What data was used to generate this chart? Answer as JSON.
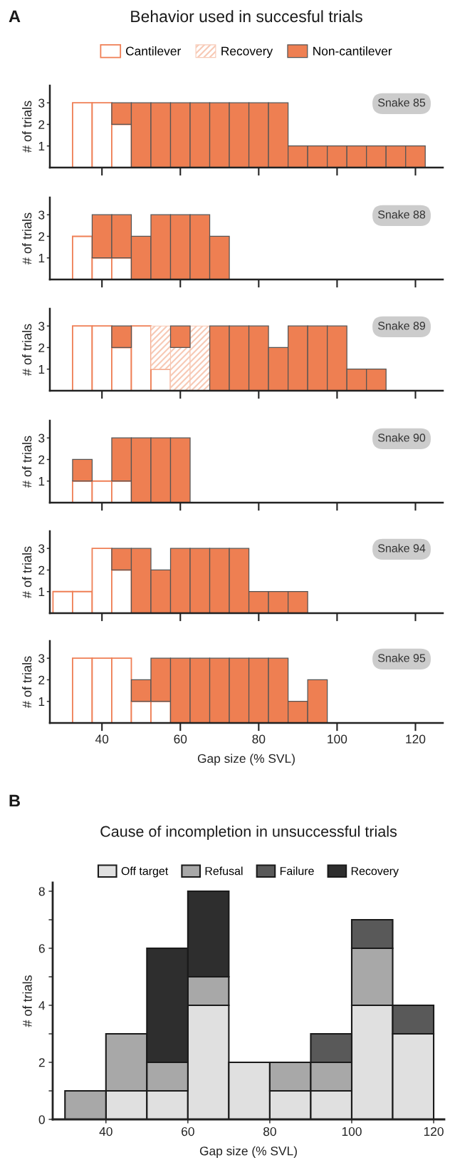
{
  "chart_data": [
    {
      "type": "bar",
      "title": "Behavior used in succesful trials",
      "subtitle": "Snake 85",
      "annotations": [
        "A"
      ],
      "ylabel": "# of trials",
      "stacked": true,
      "legend": "top",
      "tick_labels": "y",
      "x": [
        30,
        35,
        40,
        45,
        50,
        55,
        60,
        65,
        70,
        75,
        80,
        85,
        90,
        95,
        100,
        105,
        110,
        115,
        120
      ],
      "xlim": [
        26.7,
        127
      ],
      "xticks": [
        40,
        60,
        80,
        100,
        120
      ],
      "ylim": [
        0,
        3.8
      ],
      "yticks": [
        1,
        2,
        3
      ],
      "series": [
        {
          "name": "Cantilever",
          "color": "#ef7f55",
          "values": [
            0,
            3,
            3,
            2,
            0,
            0,
            0,
            0,
            0,
            0,
            0,
            0,
            0,
            0,
            0,
            0,
            0,
            0,
            0
          ]
        },
        {
          "name": "Recovery",
          "color": "#f7c9b5",
          "values": [
            0,
            0,
            0,
            0,
            0,
            0,
            0,
            0,
            0,
            0,
            0,
            0,
            0,
            0,
            0,
            0,
            0,
            0,
            0
          ]
        },
        {
          "name": "Non-cantilever",
          "color": "#ee7f52",
          "values": [
            0,
            0,
            0,
            1,
            3,
            3,
            3,
            3,
            3,
            3,
            3,
            3,
            1,
            1,
            1,
            1,
            1,
            1,
            1
          ]
        }
      ]
    },
    {
      "type": "bar",
      "subtitle": "Snake 88",
      "ylabel": "# of trials",
      "stacked": true,
      "tick_labels": "y",
      "x": [
        30,
        35,
        40,
        45,
        50,
        55,
        60,
        65,
        70,
        75,
        80,
        85,
        90,
        95,
        100,
        105,
        110,
        115,
        120
      ],
      "xlim": [
        26.7,
        127
      ],
      "xticks": [
        40,
        60,
        80,
        100,
        120
      ],
      "ylim": [
        0,
        3.8
      ],
      "yticks": [
        1,
        2,
        3
      ],
      "series": [
        {
          "color": "#ef7f55",
          "values": [
            0,
            2,
            1,
            1,
            0,
            0,
            0,
            0,
            0,
            0,
            0,
            0,
            0,
            0,
            0,
            0,
            0,
            0,
            0
          ]
        },
        {
          "color": "#f7c9b5",
          "values": [
            0,
            0,
            0,
            0,
            0,
            0,
            0,
            0,
            0,
            0,
            0,
            0,
            0,
            0,
            0,
            0,
            0,
            0,
            0
          ]
        },
        {
          "color": "#ee7f52",
          "values": [
            0,
            0,
            2,
            2,
            2,
            3,
            3,
            3,
            2,
            0,
            0,
            0,
            0,
            0,
            0,
            0,
            0,
            0,
            0
          ]
        }
      ]
    },
    {
      "type": "bar",
      "subtitle": "Snake 89",
      "ylabel": "# of trials",
      "stacked": true,
      "tick_labels": "y",
      "x": [
        30,
        35,
        40,
        45,
        50,
        55,
        60,
        65,
        70,
        75,
        80,
        85,
        90,
        95,
        100,
        105,
        110,
        115,
        120
      ],
      "xlim": [
        26.7,
        127
      ],
      "xticks": [
        40,
        60,
        80,
        100,
        120
      ],
      "ylim": [
        0,
        3.8
      ],
      "yticks": [
        1,
        2,
        3
      ],
      "series": [
        {
          "color": "#ef7f55",
          "values": [
            0,
            3,
            3,
            2,
            3,
            1,
            0,
            0,
            0,
            0,
            0,
            0,
            0,
            0,
            0,
            0,
            0,
            0,
            0
          ]
        },
        {
          "color": "#f7c9b5",
          "values": [
            0,
            0,
            0,
            0,
            0,
            2,
            2,
            3,
            0,
            0,
            0,
            0,
            0,
            0,
            0,
            0,
            0,
            0,
            0
          ]
        },
        {
          "color": "#ee7f52",
          "values": [
            0,
            0,
            0,
            1,
            0,
            0,
            1,
            0,
            3,
            3,
            3,
            2,
            3,
            3,
            3,
            1,
            1,
            0,
            0
          ]
        }
      ]
    },
    {
      "type": "bar",
      "subtitle": "Snake 90",
      "ylabel": "# of trials",
      "stacked": true,
      "tick_labels": "y",
      "x": [
        30,
        35,
        40,
        45,
        50,
        55,
        60,
        65,
        70,
        75,
        80,
        85,
        90,
        95,
        100,
        105,
        110,
        115,
        120
      ],
      "xlim": [
        26.7,
        127
      ],
      "xticks": [
        40,
        60,
        80,
        100,
        120
      ],
      "ylim": [
        0,
        3.8
      ],
      "yticks": [
        1,
        2,
        3
      ],
      "series": [
        {
          "color": "#ef7f55",
          "values": [
            0,
            1,
            1,
            1,
            0,
            0,
            0,
            0,
            0,
            0,
            0,
            0,
            0,
            0,
            0,
            0,
            0,
            0,
            0
          ]
        },
        {
          "color": "#f7c9b5",
          "values": [
            0,
            0,
            0,
            0,
            0,
            0,
            0,
            0,
            0,
            0,
            0,
            0,
            0,
            0,
            0,
            0,
            0,
            0,
            0
          ]
        },
        {
          "color": "#ee7f52",
          "values": [
            0,
            1,
            0,
            2,
            3,
            3,
            3,
            0,
            0,
            0,
            0,
            0,
            0,
            0,
            0,
            0,
            0,
            0,
            0
          ]
        }
      ]
    },
    {
      "type": "bar",
      "subtitle": "Snake 94",
      "ylabel": "# of trials",
      "stacked": true,
      "tick_labels": "y",
      "x": [
        30,
        35,
        40,
        45,
        50,
        55,
        60,
        65,
        70,
        75,
        80,
        85,
        90,
        95,
        100,
        105,
        110,
        115,
        120
      ],
      "xlim": [
        26.7,
        127
      ],
      "xticks": [
        40,
        60,
        80,
        100,
        120
      ],
      "ylim": [
        0,
        3.8
      ],
      "yticks": [
        1,
        2,
        3
      ],
      "series": [
        {
          "color": "#ef7f55",
          "values": [
            1,
            1,
            3,
            2,
            0,
            0,
            0,
            0,
            0,
            0,
            0,
            0,
            0,
            0,
            0,
            0,
            0,
            0,
            0
          ]
        },
        {
          "color": "#f7c9b5",
          "values": [
            0,
            0,
            0,
            0,
            0,
            0,
            0,
            0,
            0,
            0,
            0,
            0,
            0,
            0,
            0,
            0,
            0,
            0,
            0
          ]
        },
        {
          "color": "#ee7f52",
          "values": [
            0,
            0,
            0,
            1,
            3,
            2,
            3,
            3,
            3,
            3,
            1,
            1,
            1,
            0,
            0,
            0,
            0,
            0,
            0
          ]
        }
      ]
    },
    {
      "type": "bar",
      "subtitle": "Snake 95",
      "ylabel": "# of trials",
      "xlabel": "Gap size (% SVL)",
      "stacked": true,
      "x": [
        30,
        35,
        40,
        45,
        50,
        55,
        60,
        65,
        70,
        75,
        80,
        85,
        90,
        95,
        100,
        105,
        110,
        115,
        120
      ],
      "xlim": [
        26.7,
        127
      ],
      "xticks": [
        40,
        60,
        80,
        100,
        120
      ],
      "ylim": [
        0,
        3.8
      ],
      "yticks": [
        1,
        2,
        3
      ],
      "series": [
        {
          "color": "#ef7f55",
          "values": [
            0,
            3,
            3,
            3,
            1,
            1,
            0,
            0,
            0,
            0,
            0,
            0,
            0,
            0,
            0,
            0,
            0,
            0,
            0
          ]
        },
        {
          "color": "#f7c9b5",
          "values": [
            0,
            0,
            0,
            0,
            0,
            0,
            0,
            0,
            0,
            0,
            0,
            0,
            0,
            0,
            0,
            0,
            0,
            0,
            0
          ]
        },
        {
          "color": "#ee7f52",
          "values": [
            0,
            0,
            0,
            0,
            1,
            2,
            3,
            3,
            3,
            3,
            3,
            3,
            1,
            2,
            0,
            0,
            0,
            0,
            0
          ]
        }
      ]
    },
    {
      "type": "bar",
      "title": "Cause of incompletion in unsuccessful trials",
      "annotations": [
        "B"
      ],
      "ylabel": "# of trials",
      "xlabel": "Gap size (% SVL)",
      "stacked": true,
      "legend": "top",
      "x": [
        35,
        45,
        55,
        65,
        75,
        85,
        95,
        105,
        115
      ],
      "xlim": [
        27,
        122.6
      ],
      "xticks": [
        40,
        60,
        80,
        100,
        120
      ],
      "ylim": [
        0,
        8.3
      ],
      "yticks": [
        0,
        {
          "value": 1,
          "label": null
        },
        2,
        {
          "value": 3,
          "label": null
        },
        4,
        {
          "value": 5,
          "label": null
        },
        6,
        {
          "value": 7,
          "label": null
        },
        8
      ],
      "series": [
        {
          "name": "Off target",
          "color": "#e0e0e0",
          "values": [
            0,
            1,
            1,
            4,
            2,
            1,
            1,
            4,
            3
          ]
        },
        {
          "name": "Refusal",
          "color": "#a8a8a8",
          "values": [
            1,
            2,
            1,
            1,
            0,
            1,
            1,
            2,
            0
          ]
        },
        {
          "name": "Failure",
          "color": "#595959",
          "values": [
            0,
            0,
            0,
            0,
            0,
            0,
            1,
            1,
            1
          ]
        },
        {
          "name": "Recovery",
          "color": "#2e2e2e",
          "values": [
            0,
            0,
            4,
            3,
            0,
            0,
            0,
            0,
            0
          ]
        }
      ]
    }
  ]
}
